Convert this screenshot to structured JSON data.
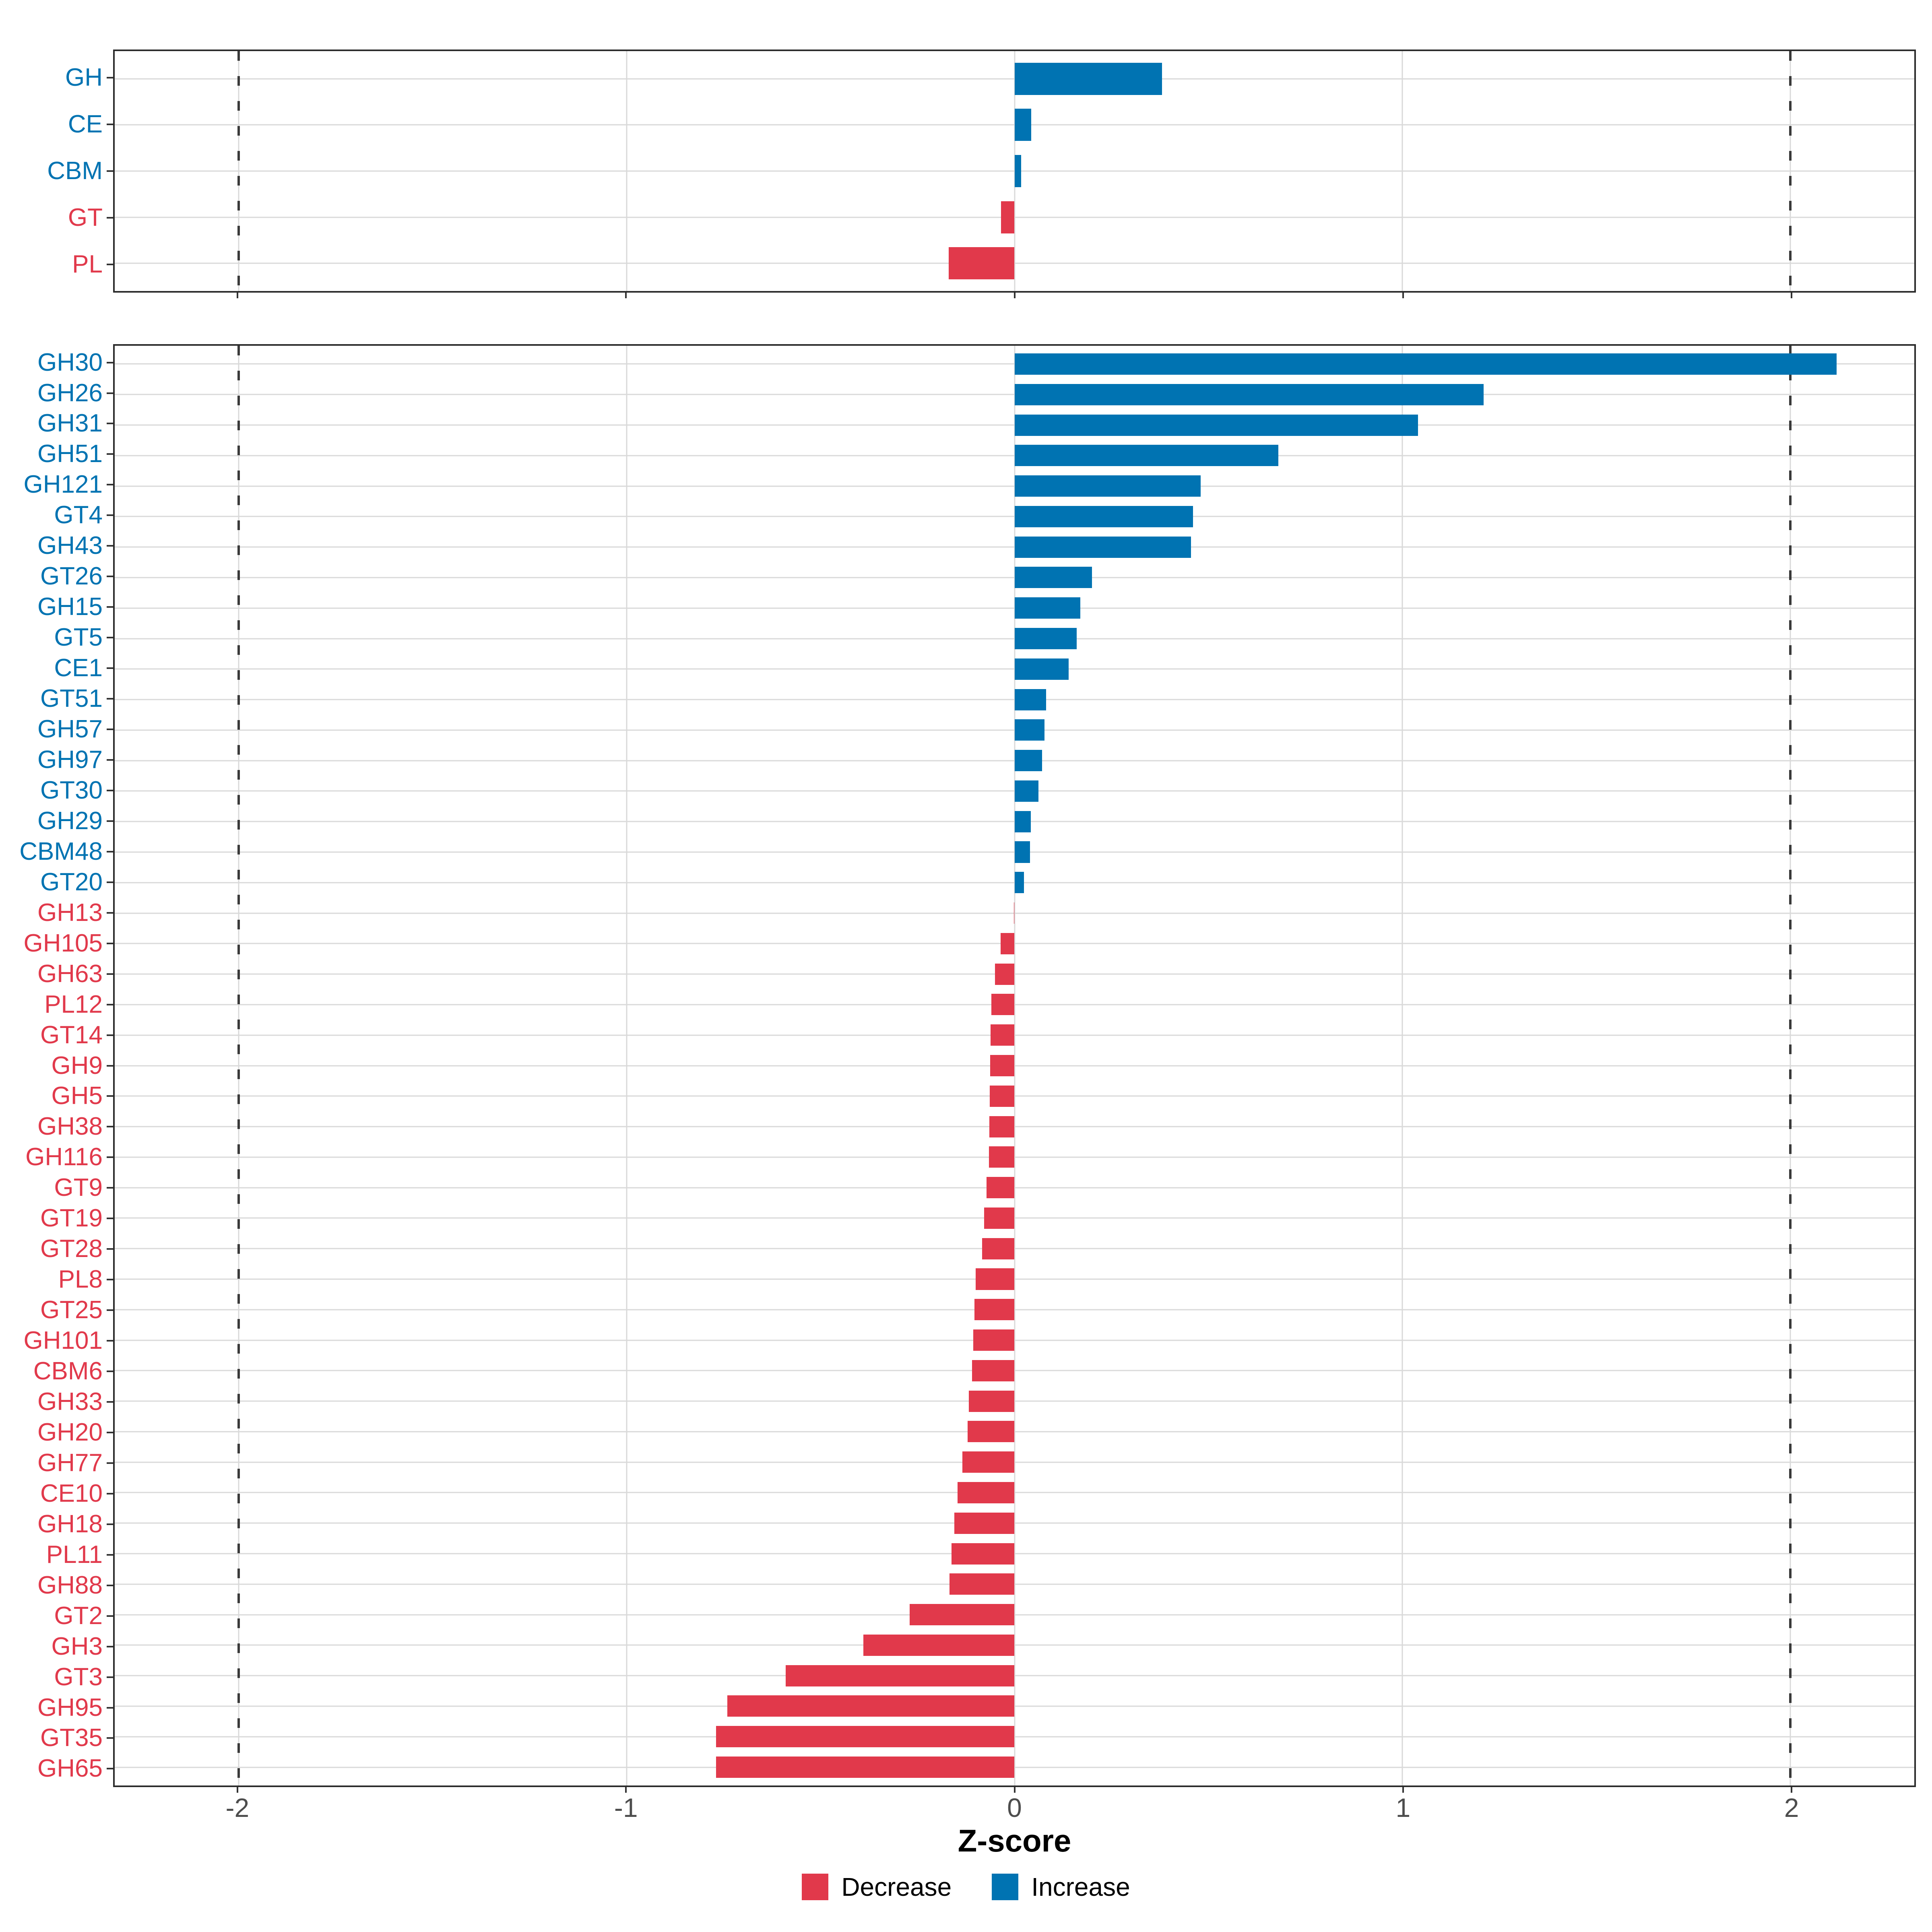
{
  "xlabel": "Z-score",
  "legend": {
    "decrease_label": "Decrease",
    "increase_label": "Increase"
  },
  "colors": {
    "increase": "#0073b2",
    "decrease": "#e1394b",
    "grid": "#d9d9d9",
    "dashed_line": "#3a3a3a",
    "panel_border": "#2b2b2b",
    "tick": "#333333",
    "tick_label": "#4d4d4d"
  },
  "chart_data": [
    {
      "type": "bar",
      "orientation": "horizontal",
      "title": "",
      "xlabel": "Z-score",
      "ylabel": "",
      "xlim": [
        -2.32,
        2.32
      ],
      "xticks": [
        -2,
        -1,
        0,
        1,
        2
      ],
      "dashed_lines_at": [
        -2,
        2
      ],
      "grid": "on",
      "legend_position": "bottom",
      "categories": [
        "GH",
        "CE",
        "CBM",
        "GT",
        "PL"
      ],
      "values": [
        0.38,
        0.043,
        0.017,
        -0.035,
        -0.17
      ],
      "series_note": "positive = Increase (blue), negative = Decrease (red)"
    },
    {
      "type": "bar",
      "orientation": "horizontal",
      "title": "",
      "xlabel": "Z-score",
      "ylabel": "",
      "xlim": [
        -2.32,
        2.32
      ],
      "xticks": [
        -2,
        -1,
        0,
        1,
        2
      ],
      "dashed_lines_at": [
        -2,
        2
      ],
      "grid": "on",
      "legend_position": "bottom",
      "categories": [
        "GH30",
        "GH26",
        "GH31",
        "GH51",
        "GH121",
        "GT4",
        "GH43",
        "GT26",
        "GH15",
        "GT5",
        "CE1",
        "GT51",
        "GH57",
        "GH97",
        "GT30",
        "GH29",
        "CBM48",
        "GT20",
        "GH13",
        "GH105",
        "GH63",
        "PL12",
        "GT14",
        "GH9",
        "GH5",
        "GH38",
        "GH116",
        "GT9",
        "GT19",
        "GT28",
        "PL8",
        "GT25",
        "GH101",
        "CBM6",
        "GH33",
        "GH20",
        "GH77",
        "CE10",
        "GH18",
        "PL11",
        "GH88",
        "GT2",
        "GH3",
        "GT3",
        "GH95",
        "GT35",
        "GH65"
      ],
      "values": [
        2.12,
        1.21,
        1.04,
        0.68,
        0.48,
        0.46,
        0.455,
        0.2,
        0.17,
        0.16,
        0.14,
        0.081,
        0.077,
        0.071,
        0.062,
        0.042,
        0.04,
        0.024,
        -0.002,
        -0.036,
        -0.05,
        -0.06,
        -0.062,
        -0.063,
        -0.064,
        -0.065,
        -0.066,
        -0.072,
        -0.078,
        -0.084,
        -0.1,
        -0.103,
        -0.106,
        -0.11,
        -0.118,
        -0.121,
        -0.134,
        -0.147,
        -0.155,
        -0.162,
        -0.168,
        -0.27,
        -0.39,
        -0.59,
        -0.74,
        -0.77,
        -0.77
      ],
      "series_note": "positive = Increase (blue), negative = Decrease (red)"
    }
  ]
}
